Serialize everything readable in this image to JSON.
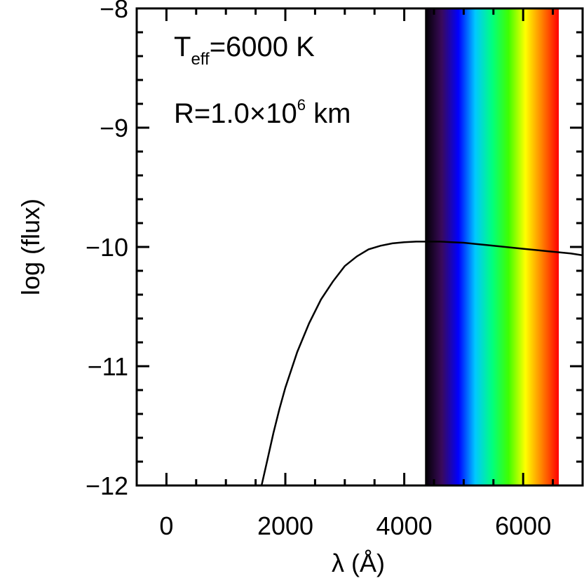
{
  "chart_data": {
    "type": "line",
    "title": "",
    "xlabel": "λ (Å)",
    "ylabel": "log (flux)",
    "xlim": [
      -500,
      7000
    ],
    "ylim": [
      -12,
      -8
    ],
    "x_ticks": [
      0,
      2000,
      4000,
      6000
    ],
    "x_tick_labels": [
      "0",
      "2000",
      "4000",
      "6000"
    ],
    "y_ticks": [
      -12,
      -11,
      -10,
      -9,
      -8
    ],
    "y_tick_labels": [
      "−12",
      "−11",
      "−10",
      "−9",
      "−8"
    ],
    "grid": false,
    "annotations": {
      "teff": {
        "main": "T",
        "sub": "eff",
        "rest": "=6000 K"
      },
      "radius": {
        "main": "R=1.0×10",
        "sup": "6",
        "rest": " km"
      }
    },
    "visible_spectrum_band": {
      "x_start": 4350,
      "x_end": 6600,
      "colors": [
        "#000000",
        "#3a0a5a",
        "#0000ff",
        "#00c8ff",
        "#00ff80",
        "#40ff00",
        "#ffff00",
        "#ff8000",
        "#ff0000"
      ]
    },
    "series": [
      {
        "color": "#000000",
        "points": [
          [
            1600,
            -12.0
          ],
          [
            1700,
            -11.78
          ],
          [
            1800,
            -11.56
          ],
          [
            1900,
            -11.36
          ],
          [
            2000,
            -11.18
          ],
          [
            2200,
            -10.88
          ],
          [
            2400,
            -10.64
          ],
          [
            2600,
            -10.44
          ],
          [
            2800,
            -10.29
          ],
          [
            3000,
            -10.16
          ],
          [
            3200,
            -10.08
          ],
          [
            3400,
            -10.02
          ],
          [
            3600,
            -9.99
          ],
          [
            3800,
            -9.97
          ],
          [
            4000,
            -9.96
          ],
          [
            4200,
            -9.955
          ],
          [
            4400,
            -9.955
          ],
          [
            4600,
            -9.955
          ],
          [
            4800,
            -9.96
          ],
          [
            5000,
            -9.965
          ],
          [
            5200,
            -9.975
          ],
          [
            5400,
            -9.985
          ],
          [
            5600,
            -9.995
          ],
          [
            5800,
            -10.005
          ],
          [
            6000,
            -10.015
          ],
          [
            6200,
            -10.025
          ],
          [
            6400,
            -10.035
          ],
          [
            6600,
            -10.045
          ],
          [
            6800,
            -10.055
          ],
          [
            7000,
            -10.07
          ]
        ]
      }
    ]
  }
}
